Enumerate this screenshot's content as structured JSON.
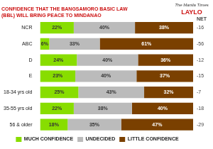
{
  "chart_data": {
    "type": "bar",
    "title": [
      "CONFIDENCE THAT THE BANGSAMORO BASIC LAW",
      "(BBL) WILL BRING PEACE TO MINDANAO"
    ],
    "annotations": [
      "The Manila Times",
      "LAYLO"
    ],
    "categories": [
      "NCR",
      "ABC",
      "D",
      "E",
      "18-34 yrs old",
      "35-55 yrs old",
      "56 & older"
    ],
    "series": [
      {
        "name": "MUCH CONFIDENCE",
        "color": "#88dd00",
        "values": [
          22,
          6,
          24,
          23,
          25,
          22,
          18
        ],
        "value_labels": [
          "22%",
          "6%",
          "24%",
          "23%",
          "25%",
          "22%",
          "18%"
        ]
      },
      {
        "name": "UNDECIDED",
        "color": "#bbbbbb",
        "values": [
          40,
          33,
          40,
          40,
          43,
          38,
          35
        ],
        "value_labels": [
          "40%",
          "33%",
          "40%",
          "40%",
          "43%",
          "38%",
          "35%"
        ]
      },
      {
        "name": "LITTLE CONFIDENCE",
        "color": "#7a4000",
        "values": [
          38,
          61,
          36,
          37,
          32,
          40,
          47
        ],
        "value_labels": [
          "38%",
          "61%",
          "36%",
          "37%",
          "32%",
          "40%",
          "47%"
        ]
      }
    ],
    "net_label": "NET",
    "net": [
      -16,
      -56,
      -12,
      -15,
      -7,
      -18,
      -29
    ],
    "orientation": "horizontal",
    "stacked": true,
    "data_labels": true,
    "xlim": [
      0,
      100
    ],
    "tick_labels": "y",
    "grid": false,
    "legend": "bottom"
  }
}
